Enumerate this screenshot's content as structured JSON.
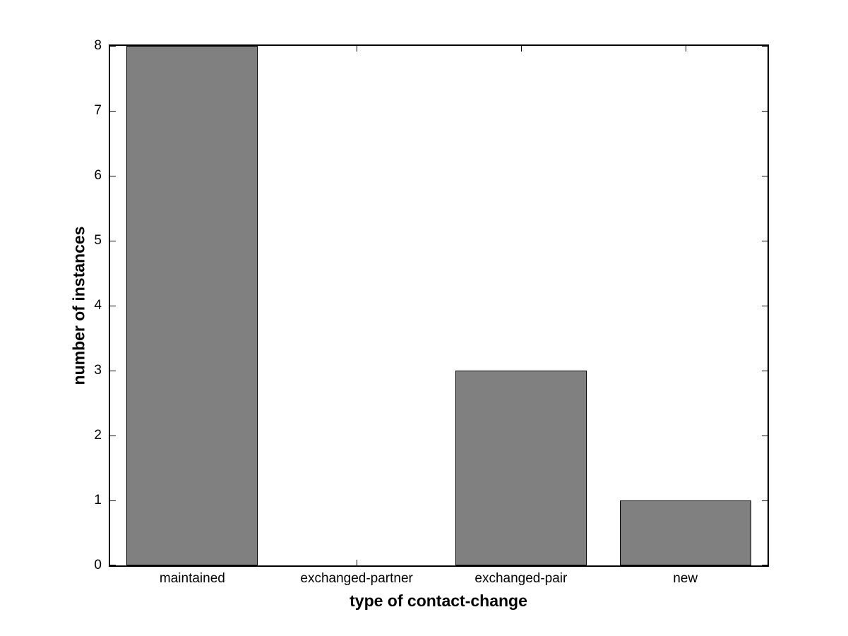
{
  "chart_data": {
    "type": "bar",
    "categories": [
      "maintained",
      "exchanged-partner",
      "exchanged-pair",
      "new"
    ],
    "values": [
      8,
      0,
      3,
      1
    ],
    "title": "",
    "xlabel": "type of contact-change",
    "ylabel": "number of instances",
    "ylim": [
      0,
      8
    ],
    "yticks": [
      0,
      1,
      2,
      3,
      4,
      5,
      6,
      7,
      8
    ],
    "bar_width_fraction": 0.8,
    "colors": {
      "bar_fill": "#808080",
      "bar_edge": "#000000",
      "axis": "#000000",
      "background": "#ffffff",
      "text": "#000000"
    },
    "grid": false,
    "legend": "none",
    "tick_direction": "in"
  }
}
